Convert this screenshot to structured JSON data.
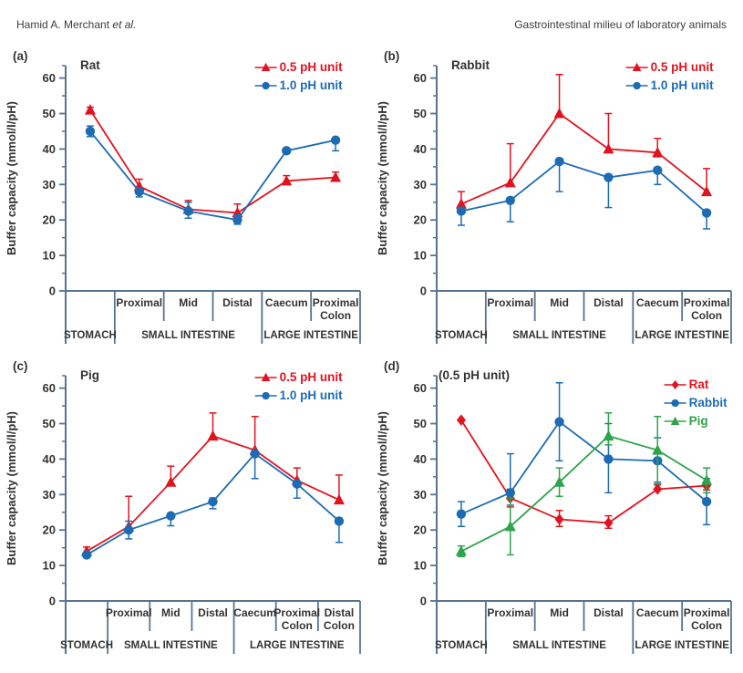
{
  "header": {
    "author_main": "Hamid A. Merchant",
    "author_etal": "et al.",
    "running_title": "Gastrointestinal milieu of laboratory animals"
  },
  "colors": {
    "red": "#e2131f",
    "blue": "#1d6cb3",
    "green": "#2da44c",
    "axis": "#56748f",
    "text": "#333333"
  },
  "chart_data": [
    {
      "id": "a",
      "type": "line",
      "panel_label": "(a)",
      "title": "Rat",
      "ylabel": "Buffer capacity (mmol/l/pH)",
      "ylim": [
        0,
        63.5
      ],
      "yticks": [
        0,
        10,
        20,
        30,
        40,
        50,
        60
      ],
      "minor_tick_step": 5,
      "grid": false,
      "legend_position": "top-right",
      "categories": [
        "STOMACH",
        "Proximal",
        "Mid",
        "Distal",
        "Caecum",
        "Proximal Colon"
      ],
      "axis_row1": [
        "",
        "Proximal",
        "Mid",
        "Distal",
        "Caecum",
        "Proximal\nColon"
      ],
      "axis_groups": [
        {
          "label": "STOMACH",
          "from": 0,
          "to": 1
        },
        {
          "label": "SMALL INTESTINE",
          "from": 1,
          "to": 4
        },
        {
          "label": "LARGE INTESTINE",
          "from": 4,
          "to": 6
        }
      ],
      "series": [
        {
          "name": "0.5 pH unit",
          "color": "red",
          "marker": "triangle",
          "values": [
            51,
            29.5,
            23,
            22,
            31,
            32
          ],
          "err_up": [
            0.8,
            2,
            2.5,
            2.5,
            1.5,
            1.5
          ],
          "err_down": [
            0.8,
            1,
            0,
            1.5,
            0,
            1
          ]
        },
        {
          "name": "1.0 pH unit",
          "color": "blue",
          "marker": "circle",
          "values": [
            45,
            28,
            22.5,
            20,
            39.5,
            42.5
          ],
          "err_up": [
            1.5,
            1,
            2.5,
            1.5,
            0,
            0
          ],
          "err_down": [
            1.5,
            1.5,
            2,
            1.2,
            0,
            3
          ]
        }
      ]
    },
    {
      "id": "b",
      "type": "line",
      "panel_label": "(b)",
      "title": "Rabbit",
      "ylabel": "Buffer capacity (mmol/l/pH)",
      "ylim": [
        0,
        63.5
      ],
      "yticks": [
        0,
        10,
        20,
        30,
        40,
        50,
        60
      ],
      "minor_tick_step": 5,
      "grid": false,
      "legend_position": "top-right",
      "categories": [
        "STOMACH",
        "Proximal",
        "Mid",
        "Distal",
        "Caecum",
        "Proximal Colon"
      ],
      "axis_row1": [
        "",
        "Proximal",
        "Mid",
        "Distal",
        "Caecum",
        "Proximal\nColon"
      ],
      "axis_groups": [
        {
          "label": "STOMACH",
          "from": 0,
          "to": 1
        },
        {
          "label": "SMALL INTESTINE",
          "from": 1,
          "to": 4
        },
        {
          "label": "LARGE INTESTINE",
          "from": 4,
          "to": 6
        }
      ],
      "series": [
        {
          "name": "0.5 pH unit",
          "color": "red",
          "marker": "triangle",
          "values": [
            24.5,
            30.5,
            50,
            40,
            39,
            28
          ],
          "err_up": [
            3.5,
            11,
            11,
            10,
            4,
            6.5
          ],
          "err_down": [
            1,
            0.8,
            0.8,
            0.8,
            1.2,
            0.8
          ]
        },
        {
          "name": "1.0 pH unit",
          "color": "blue",
          "marker": "circle",
          "values": [
            22.5,
            25.5,
            36.5,
            32,
            34,
            22
          ],
          "err_up": [
            0.8,
            0.8,
            0.8,
            0.8,
            0.8,
            0.8
          ],
          "err_down": [
            4,
            6,
            8.5,
            8.5,
            4,
            4.5
          ]
        }
      ]
    },
    {
      "id": "c",
      "type": "line",
      "panel_label": "(c)",
      "title": "Pig",
      "ylabel": "Buffer capacity (mmol/l/pH)",
      "ylim": [
        0,
        63.5
      ],
      "yticks": [
        0,
        10,
        20,
        30,
        40,
        50,
        60
      ],
      "minor_tick_step": 5,
      "grid": false,
      "legend_position": "top-right",
      "categories": [
        "STOMACH",
        "Proximal",
        "Mid",
        "Distal",
        "Caecum",
        "Proximal Colon",
        "Distal Colon"
      ],
      "axis_row1": [
        "",
        "Proximal",
        "Mid",
        "Distal",
        "Caecum",
        "Proximal\nColon",
        "Distal\nColon"
      ],
      "axis_groups": [
        {
          "label": "STOMACH",
          "from": 0,
          "to": 1
        },
        {
          "label": "SMALL INTESTINE",
          "from": 1,
          "to": 4
        },
        {
          "label": "LARGE INTESTINE",
          "from": 4,
          "to": 7
        }
      ],
      "series": [
        {
          "name": "0.5 pH unit",
          "color": "red",
          "marker": "triangle",
          "values": [
            14,
            21,
            33.5,
            46.5,
            42.5,
            34,
            28.5
          ],
          "err_up": [
            1.2,
            8.5,
            4.5,
            6.5,
            9.5,
            3.5,
            7
          ],
          "err_down": [
            1.2,
            0.5,
            0.5,
            0.5,
            0.5,
            0.5,
            0.5
          ]
        },
        {
          "name": "1.0 pH unit",
          "color": "blue",
          "marker": "circle",
          "values": [
            13,
            20,
            24,
            28,
            41.5,
            33,
            22.5
          ],
          "err_up": [
            0.8,
            2.5,
            0.5,
            1,
            0.8,
            0.8,
            0.8
          ],
          "err_down": [
            0.8,
            2.5,
            2.8,
            2,
            7,
            4,
            6
          ]
        }
      ]
    },
    {
      "id": "d",
      "type": "line",
      "panel_label": "(d)",
      "title": "(0.5 pH unit)",
      "ylabel": "Buffer capacity (mmol/l/pH)",
      "ylim": [
        0,
        63.5
      ],
      "yticks": [
        0,
        10,
        20,
        30,
        40,
        50,
        60
      ],
      "minor_tick_step": 5,
      "grid": false,
      "legend_position": "top-right",
      "categories": [
        "STOMACH",
        "Proximal",
        "Mid",
        "Distal",
        "Caecum",
        "Proximal Colon"
      ],
      "axis_row1": [
        "",
        "Proximal",
        "Mid",
        "Distal",
        "Caecum",
        "Proximal\nColon"
      ],
      "axis_groups": [
        {
          "label": "STOMACH",
          "from": 0,
          "to": 1
        },
        {
          "label": "SMALL INTESTINE",
          "from": 1,
          "to": 4
        },
        {
          "label": "LARGE INTESTINE",
          "from": 4,
          "to": 6
        }
      ],
      "series": [
        {
          "name": "Rat",
          "color": "red",
          "marker": "diamond",
          "values": [
            51,
            29,
            23,
            22,
            31.5,
            32.5
          ],
          "err_up": [
            0.5,
            2.5,
            2.5,
            2,
            1.2,
            1.2
          ],
          "err_down": [
            0.5,
            2.5,
            2,
            1.5,
            0.5,
            1.2
          ]
        },
        {
          "name": "Rabbit",
          "color": "blue",
          "marker": "circle",
          "values": [
            24.5,
            30.5,
            50.5,
            40,
            39.5,
            28
          ],
          "err_up": [
            3.5,
            11,
            11,
            10,
            6.5,
            6.5
          ],
          "err_down": [
            3.5,
            3.5,
            11,
            9.5,
            6,
            6.5
          ]
        },
        {
          "name": "Pig",
          "color": "green",
          "marker": "triangle",
          "values": [
            14,
            21,
            33.5,
            46.5,
            42.5,
            34
          ],
          "err_up": [
            1.5,
            8,
            4,
            6.5,
            9.5,
            3.5
          ],
          "err_down": [
            1.5,
            8,
            4,
            2.5,
            9.5,
            3.5
          ]
        }
      ]
    }
  ]
}
